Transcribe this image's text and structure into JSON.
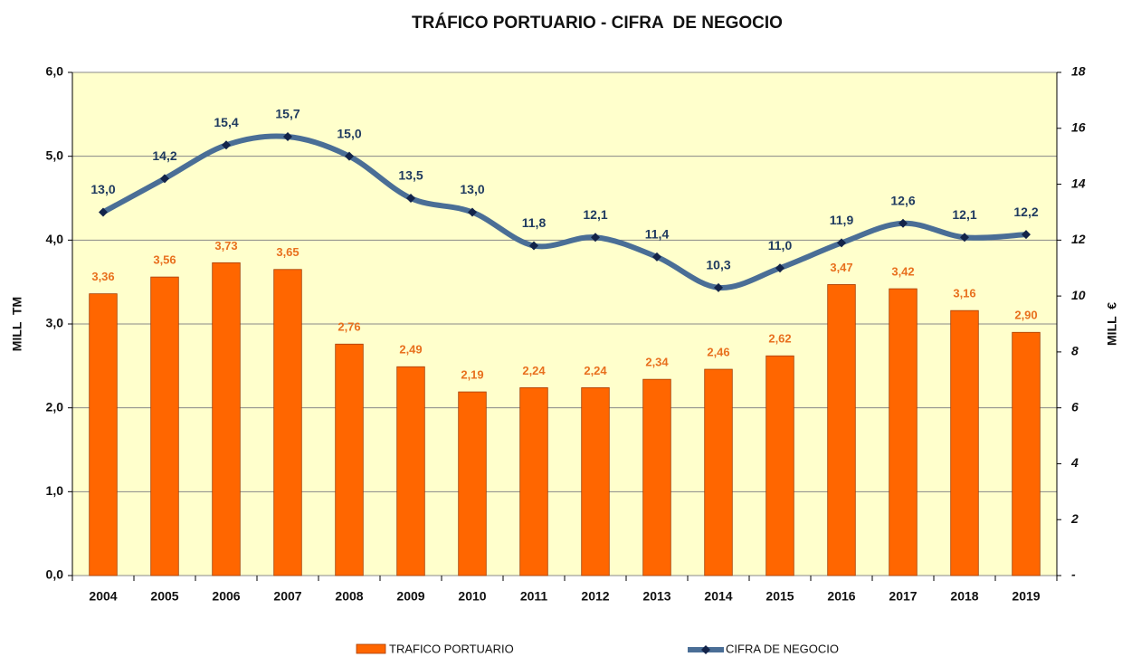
{
  "chart_data": {
    "type": "bar_line",
    "title": "TRÁFICO PORTUARIO - CIFRA  DE NEGOCIO",
    "y_label": "MILL  TM",
    "y2_label": "MILL  €",
    "categories": [
      "2004",
      "2005",
      "2006",
      "2007",
      "2008",
      "2009",
      "2010",
      "2011",
      "2012",
      "2013",
      "2014",
      "2015",
      "2016",
      "2017",
      "2018",
      "2019"
    ],
    "series": [
      {
        "name": "TRAFICO PORTUARIO",
        "type": "bar",
        "color": "#ff6600",
        "values": [
          3.36,
          3.56,
          3.73,
          3.65,
          2.76,
          2.49,
          2.19,
          2.24,
          2.24,
          2.34,
          2.46,
          2.62,
          3.47,
          3.42,
          3.16,
          2.9
        ],
        "value_labels": [
          "3,36",
          "3,56",
          "3,73",
          "3,65",
          "2,76",
          "2,49",
          "2,19",
          "2,24",
          "2,24",
          "2,34",
          "2,46",
          "2,62",
          "3,47",
          "3,42",
          "3,16",
          "2,90"
        ]
      },
      {
        "name": "CIFRA DE NEGOCIO",
        "type": "line",
        "axis": "y2",
        "color": "#4a6e96",
        "marker_color": "#13244a",
        "values": [
          13.0,
          14.2,
          15.4,
          15.7,
          15.0,
          13.5,
          13.0,
          11.8,
          12.1,
          11.4,
          10.3,
          11.0,
          11.9,
          12.6,
          12.1,
          12.2
        ],
        "value_labels": [
          "13,0",
          "14,2",
          "15,4",
          "15,7",
          "15,0",
          "13,5",
          "13,0",
          "11,8",
          "12,1",
          "11,4",
          "10,3",
          "11,0",
          "11,9",
          "12,6",
          "12,1",
          "12,2"
        ]
      }
    ],
    "ylim": [
      0,
      6
    ],
    "yticks": [
      {
        "value": 0,
        "label": "0,0"
      },
      {
        "value": 1,
        "label": "1,0"
      },
      {
        "value": 2,
        "label": "2,0"
      },
      {
        "value": 3,
        "label": "3,0"
      },
      {
        "value": 4,
        "label": "4,0"
      },
      {
        "value": 5,
        "label": "5,0"
      },
      {
        "value": 6,
        "label": "6,0"
      }
    ],
    "y2lim": [
      0,
      18
    ],
    "y2ticks": [
      {
        "value": 0,
        "label": "-"
      },
      2,
      4,
      6,
      8,
      10,
      12,
      14,
      16,
      18
    ],
    "grid": true,
    "background": "#ffffcc",
    "legend": "bottom"
  }
}
